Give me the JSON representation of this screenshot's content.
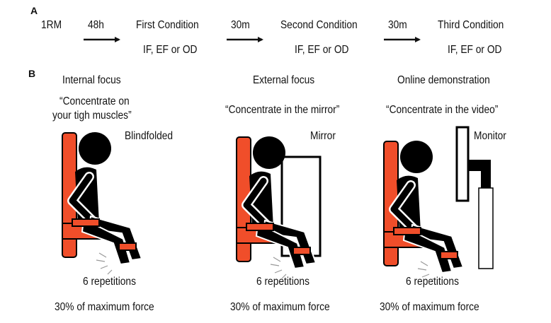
{
  "panel_a": {
    "label": "A",
    "start": "1RM",
    "steps": [
      {
        "interval": "48h",
        "condition": "First Condition",
        "options": "IF, EF or OD"
      },
      {
        "interval": "30m",
        "condition": "Second Condition",
        "options": "IF, EF or OD"
      },
      {
        "interval": "30m",
        "condition": "Third Condition",
        "options": "IF, EF or OD"
      }
    ]
  },
  "panel_b": {
    "label": "B",
    "conditions": [
      {
        "title": "Internal focus",
        "instruction_line1": "“Concentrate on",
        "instruction_line2": "your tigh muscles”",
        "device": "Blindfolded",
        "reps": "6 repetitions",
        "force": "30% of maximum force"
      },
      {
        "title": "External focus",
        "instruction_line1": "“Concentrate in the mirror”",
        "device": "Mirror",
        "reps": "6 repetitions",
        "force": "30% of maximum force"
      },
      {
        "title": "Online demonstration",
        "instruction_line1": "“Concentrate in the video”",
        "device": "Monitor",
        "reps": "6 repetitions",
        "force": "30% of maximum force"
      }
    ]
  },
  "colors": {
    "chair": "#f04e2a",
    "figure": "#000000",
    "arrow": "#111111"
  }
}
